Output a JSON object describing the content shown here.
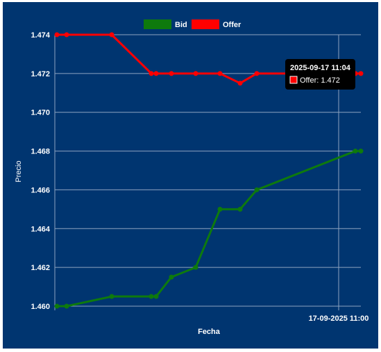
{
  "colors": {
    "background": "#003570",
    "grid": "#8ea3c0",
    "text": "#ffffff",
    "bid": "#0e7a0d",
    "offer": "#ff0000",
    "tooltip_bg": "#000000"
  },
  "chart_data": {
    "type": "line",
    "xlabel": "Fecha",
    "ylabel": "Precio",
    "ylim": [
      1.46,
      1.474
    ],
    "y_ticks": [
      "1.460",
      "1.462",
      "1.464",
      "1.466",
      "1.468",
      "1.470",
      "1.472",
      "1.474"
    ],
    "x_tick_label": "17-09-2025 11:00",
    "grid": true,
    "legend_position": "top",
    "series": [
      {
        "name": "Bid",
        "color": "#0e7a0d",
        "values": [
          1.46,
          1.46,
          1.4605,
          1.4605,
          1.4605,
          1.4615,
          1.462,
          1.465,
          1.465,
          1.466,
          1.468,
          1.468
        ]
      },
      {
        "name": "Offer",
        "color": "#ff0000",
        "values": [
          1.474,
          1.474,
          1.474,
          1.472,
          1.472,
          1.472,
          1.472,
          1.472,
          1.4715,
          1.472,
          1.472,
          1.472
        ]
      }
    ],
    "tooltip": {
      "title": "2025-09-17 11:04",
      "label": "Offer: 1.472"
    }
  }
}
